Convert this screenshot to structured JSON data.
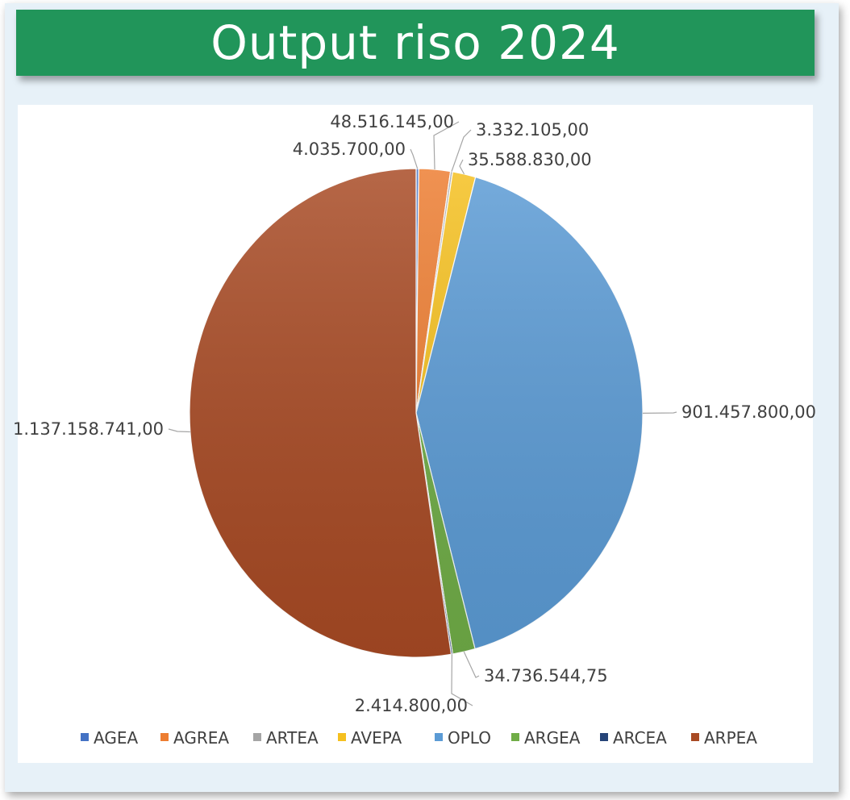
{
  "chart_data": {
    "type": "pie",
    "title": "Output riso 2024",
    "legend_position": "bottom",
    "slices": [
      {
        "label": "AGEA",
        "value": 4035700.0,
        "value_label": "4.035.700,00",
        "color": "#4472c4"
      },
      {
        "label": "AGREA",
        "value": 48516145.0,
        "value_label": "48.516.145,00",
        "color": "#ed7d31"
      },
      {
        "label": "ARTEA",
        "value": 3332105.0,
        "value_label": "3.332.105,00",
        "color": "#a5a5a5"
      },
      {
        "label": "AVEPA",
        "value": 35588830.0,
        "value_label": "35.588.830,00",
        "color": "#f5c01f"
      },
      {
        "label": "OPLO",
        "value": 901457800.0,
        "value_label": "901.457.800,00",
        "color": "#5b9bd5"
      },
      {
        "label": "ARGEA",
        "value": 34736544.75,
        "value_label": "34.736.544,75",
        "color": "#70ad47"
      },
      {
        "label": "ARCEA",
        "value": 2414800.0,
        "value_label": "2.414.800,00",
        "color": "#264478"
      },
      {
        "label": "ARPEA",
        "value": 1137158741.0,
        "value_label": "1.137.158.741,00",
        "color": "#a84a24"
      }
    ]
  }
}
